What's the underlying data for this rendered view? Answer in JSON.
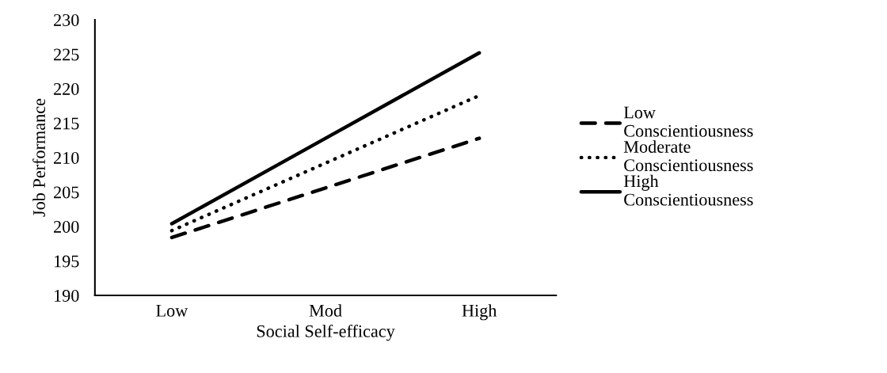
{
  "chart_data": {
    "type": "line",
    "xlabel": "Social Self-efficacy",
    "ylabel": "Job Performance",
    "categories": [
      "Low",
      "Mod",
      "High"
    ],
    "series": [
      {
        "name": "Low Conscientiousness",
        "color": "#000000",
        "line_style": "dashed",
        "values": [
          198.4,
          205.6,
          212.8
        ]
      },
      {
        "name": "Moderate Conscientiousness",
        "color": "#000000",
        "line_style": "dotted",
        "values": [
          199.4,
          209.2,
          219.0
        ]
      },
      {
        "name": "High Conscientiousness",
        "color": "#000000",
        "line_style": "solid",
        "values": [
          200.4,
          212.8,
          225.2
        ]
      }
    ],
    "ylim": [
      190,
      230
    ],
    "yticks": [
      190,
      195,
      200,
      205,
      210,
      215,
      220,
      225,
      230
    ],
    "grid": false,
    "legend": "right",
    "marker": "none"
  }
}
